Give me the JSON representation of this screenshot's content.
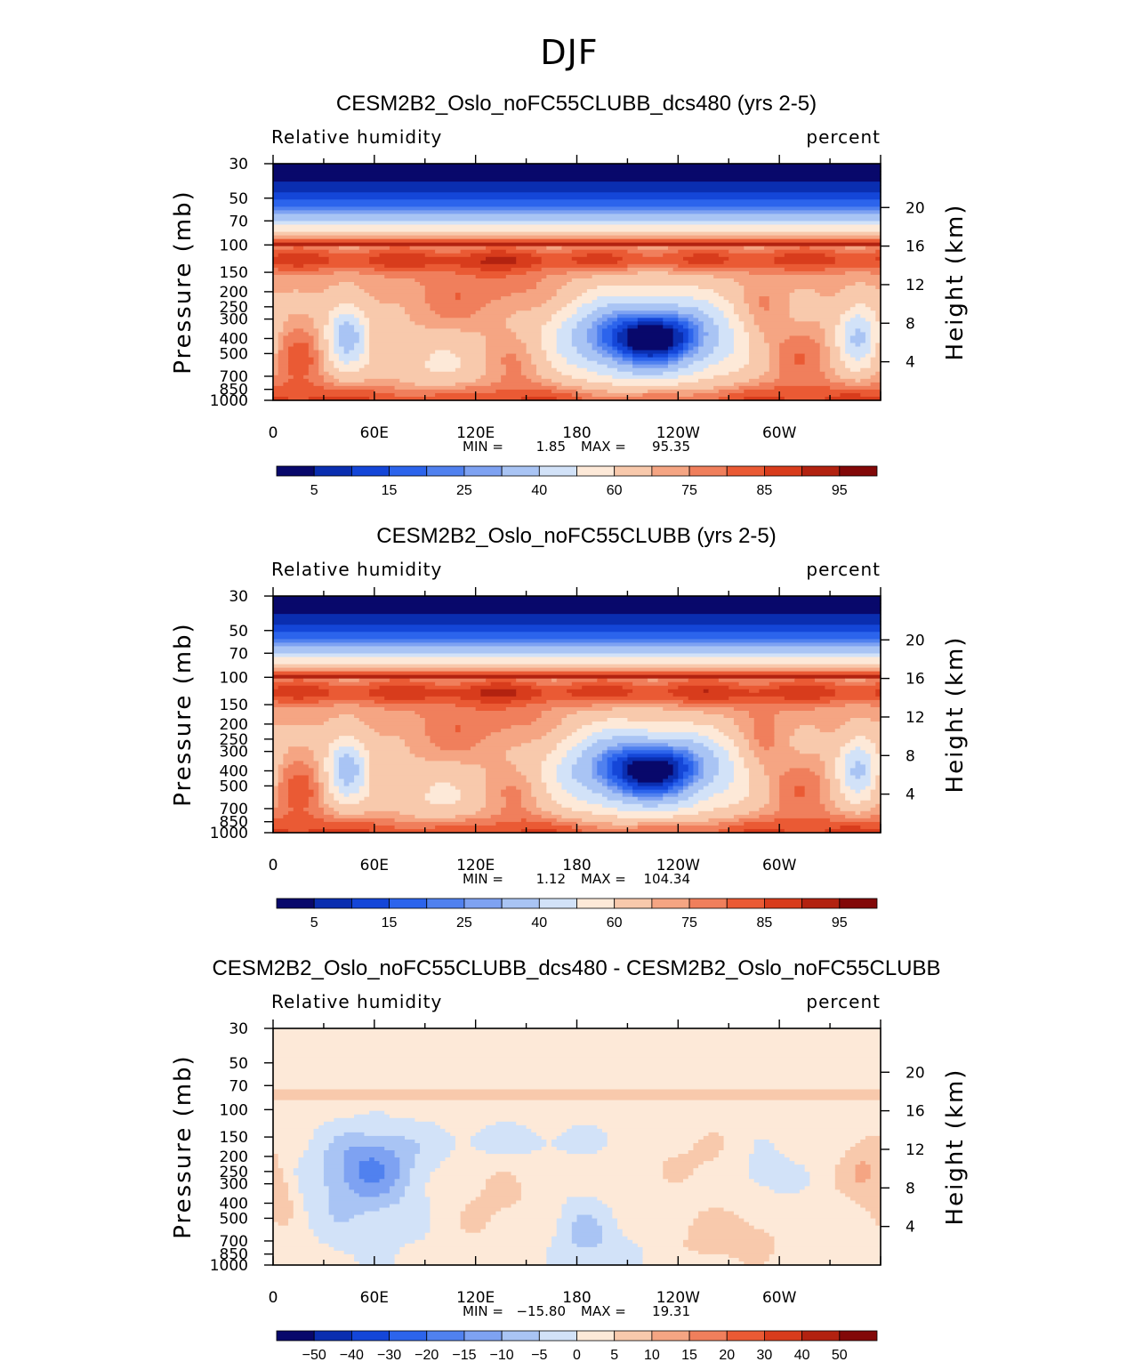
{
  "suptitle": "DJF",
  "colors": {
    "abs_scale": [
      "#08086b",
      "#0a2eb0",
      "#1446d8",
      "#2c64ec",
      "#5081ef",
      "#7ea2f2",
      "#a9c4f4",
      "#d2e2f8",
      "#fde9d8",
      "#f8c9ac",
      "#f5a583",
      "#f07f5c",
      "#ea5a34",
      "#d83c1c",
      "#b22210",
      "#820808"
    ],
    "diff_scale": [
      "#08086b",
      "#0a2eb0",
      "#1446d8",
      "#2c64ec",
      "#5081ef",
      "#7ea2f2",
      "#a9c4f4",
      "#d2e2f8",
      "#fde9d8",
      "#f8c9ac",
      "#f5a583",
      "#f07f5c",
      "#ea5a34",
      "#d83c1c",
      "#b22210",
      "#820808"
    ]
  },
  "chart_data": [
    {
      "type": "heatmap",
      "title": "CESM2B2_Oslo_noFC55CLUBB_dcs480 (yrs 2-5)",
      "left_label": "Relative humidity",
      "right_label": "percent",
      "ylabel": "Pressure (mb)",
      "ylabel_right": "Height (km)",
      "x_ticks": [
        "0",
        "60E",
        "120E",
        "180",
        "120W",
        "60W"
      ],
      "x_range_deg": [
        0,
        360
      ],
      "pressure_ticks": [
        30,
        50,
        70,
        100,
        150,
        200,
        250,
        300,
        400,
        500,
        700,
        850,
        1000
      ],
      "pressure_tick_labels": [
        "30",
        "50",
        "70",
        "100",
        "150",
        "200",
        "250",
        "300",
        "400",
        "500",
        "700",
        "850",
        "1000"
      ],
      "height_ticks": [
        20,
        16,
        12,
        8,
        4
      ],
      "height_tick_labels": [
        "20",
        "16",
        "12",
        "8",
        "4"
      ],
      "min_label": "MIN =",
      "min_value": "1.85",
      "max_label": "MAX =",
      "max_value": "95.35",
      "colorbar_labels": [
        "5",
        "15",
        "25",
        "40",
        "60",
        "75",
        "85",
        "95"
      ],
      "field": "dcs480",
      "scale": "abs"
    },
    {
      "type": "heatmap",
      "title": "CESM2B2_Oslo_noFC55CLUBB (yrs 2-5)",
      "left_label": "Relative humidity",
      "right_label": "percent",
      "ylabel": "Pressure (mb)",
      "ylabel_right": "Height (km)",
      "x_ticks": [
        "0",
        "60E",
        "120E",
        "180",
        "120W",
        "60W"
      ],
      "x_range_deg": [
        0,
        360
      ],
      "pressure_ticks": [
        30,
        50,
        70,
        100,
        150,
        200,
        250,
        300,
        400,
        500,
        700,
        850,
        1000
      ],
      "pressure_tick_labels": [
        "30",
        "50",
        "70",
        "100",
        "150",
        "200",
        "250",
        "300",
        "400",
        "500",
        "700",
        "850",
        "1000"
      ],
      "height_ticks": [
        20,
        16,
        12,
        8,
        4
      ],
      "height_tick_labels": [
        "20",
        "16",
        "12",
        "8",
        "4"
      ],
      "min_label": "MIN =",
      "min_value": "1.12",
      "max_label": "MAX =",
      "max_value": "104.34",
      "colorbar_labels": [
        "5",
        "15",
        "25",
        "40",
        "60",
        "75",
        "85",
        "95"
      ],
      "field": "control",
      "scale": "abs"
    },
    {
      "type": "heatmap",
      "title": "CESM2B2_Oslo_noFC55CLUBB_dcs480 - CESM2B2_Oslo_noFC55CLUBB",
      "left_label": "Relative humidity",
      "right_label": "percent",
      "ylabel": "Pressure (mb)",
      "ylabel_right": "Height (km)",
      "x_ticks": [
        "0",
        "60E",
        "120E",
        "180",
        "120W",
        "60W"
      ],
      "x_range_deg": [
        0,
        360
      ],
      "pressure_ticks": [
        30,
        50,
        70,
        100,
        150,
        200,
        250,
        300,
        400,
        500,
        700,
        850,
        1000
      ],
      "pressure_tick_labels": [
        "30",
        "50",
        "70",
        "100",
        "150",
        "200",
        "250",
        "300",
        "400",
        "500",
        "700",
        "850",
        "1000"
      ],
      "height_ticks": [
        20,
        16,
        12,
        8,
        4
      ],
      "height_tick_labels": [
        "20",
        "16",
        "12",
        "8",
        "4"
      ],
      "min_label": "MIN =",
      "min_value": "−15.80",
      "max_label": "MAX =",
      "max_value": "19.31",
      "colorbar_labels": [
        "−50",
        "−40",
        "−30",
        "−20",
        "−15",
        "−10",
        "−5",
        "0",
        "5",
        "10",
        "15",
        "20",
        "30",
        "40",
        "50"
      ],
      "field": "diff",
      "scale": "diff"
    }
  ]
}
